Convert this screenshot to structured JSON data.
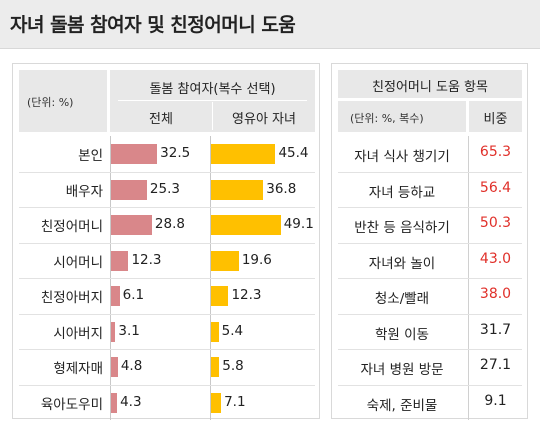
{
  "title": "자녀 돌봄 참여자 및 친정어머니 도움",
  "left": {
    "unit_label": "(단위: %)",
    "group_header": "돌봄 참여자(복수 선택)",
    "col_headers": [
      "전체",
      "영유아 자녀"
    ]
  },
  "right": {
    "header": "친정어머니 도움 항목",
    "unit_label": "(단위: %, 복수)",
    "col_header": "비중"
  },
  "colors": {
    "total_bar": "#d9878a",
    "infant_bar": "#ffc000",
    "highlight_value": "#e0302a",
    "normal_value": "#222222"
  },
  "chart_data": [
    {
      "type": "bar",
      "orientation": "horizontal",
      "categories": [
        "본인",
        "배우자",
        "친정어머니",
        "시어머니",
        "친정아버지",
        "시아버지",
        "형제자매",
        "육아도우미"
      ],
      "series": [
        {
          "name": "전체",
          "values": [
            32.5,
            25.3,
            28.8,
            12.3,
            6.1,
            3.1,
            4.8,
            4.3
          ]
        },
        {
          "name": "영유아 자녀",
          "values": [
            45.4,
            36.8,
            49.1,
            19.6,
            12.3,
            5.4,
            5.8,
            7.1
          ]
        }
      ]
    },
    {
      "type": "table",
      "columns": [
        "(단위: %, 복수)",
        "비중"
      ],
      "rows": [
        {
          "label": "자녀 식사 챙기기",
          "value": "65.3",
          "highlight": true
        },
        {
          "label": "자녀 등하교",
          "value": "56.4",
          "highlight": true
        },
        {
          "label": "반찬 등 음식하기",
          "value": "50.3",
          "highlight": true
        },
        {
          "label": "자녀와 놀이",
          "value": "43.0",
          "highlight": true
        },
        {
          "label": "청소/빨래",
          "value": "38.0",
          "highlight": true
        },
        {
          "label": "학원 이동",
          "value": "31.7",
          "highlight": false
        },
        {
          "label": "자녀 병원 방문",
          "value": "27.1",
          "highlight": false
        },
        {
          "label": "숙제, 준비물",
          "value": "9.1",
          "highlight": false
        }
      ]
    }
  ]
}
